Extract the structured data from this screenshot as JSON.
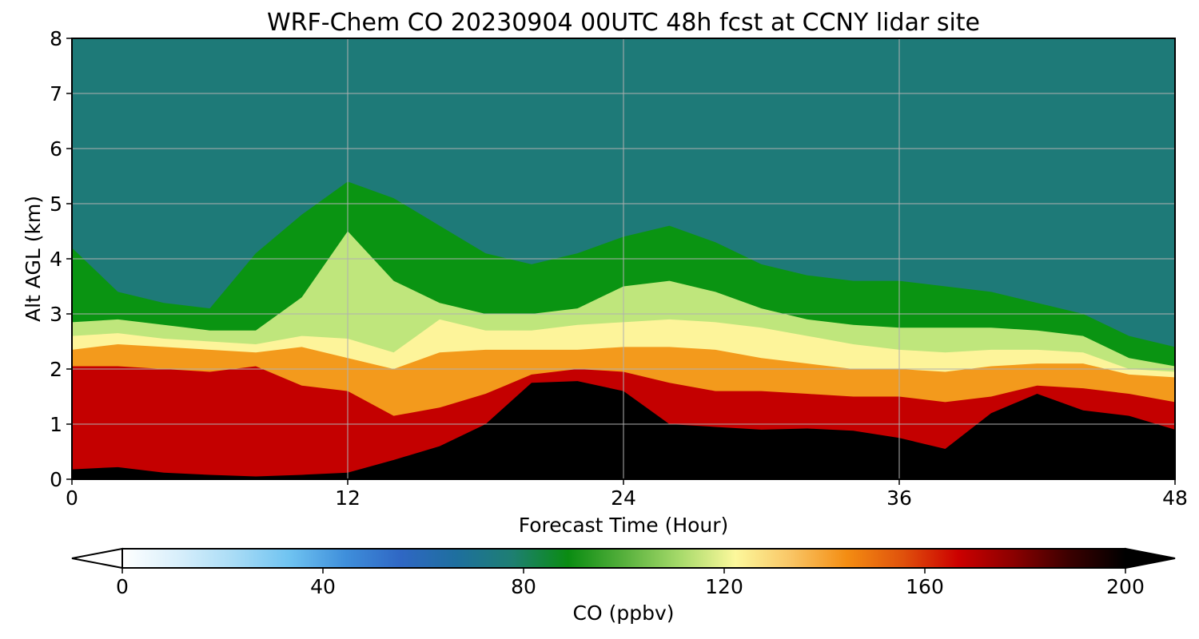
{
  "chart_data": {
    "type": "heatmap",
    "title": "WRF-Chem CO  20230904 00UTC 48h fcst at CCNY lidar site",
    "xlabel": "Forecast Time (Hour)",
    "ylabel": "Alt AGL (km)",
    "xlim": [
      0,
      48
    ],
    "ylim": [
      0,
      8
    ],
    "xticks": [
      0,
      12,
      24,
      36,
      48
    ],
    "xtick_labels": [
      "0",
      "12",
      "24",
      "36",
      "48"
    ],
    "yticks": [
      0,
      1,
      2,
      3,
      4,
      5,
      6,
      7,
      8
    ],
    "ytick_labels": [
      "0",
      "1",
      "2",
      "3",
      "4",
      "5",
      "6",
      "7",
      "8"
    ],
    "grid": true,
    "colorbar": {
      "label": "CO  (ppbv)",
      "range": [
        0,
        200
      ],
      "ticks": [
        0,
        40,
        80,
        120,
        160,
        200
      ],
      "tick_labels": [
        "0",
        "40",
        "80",
        "120",
        "160",
        "200"
      ],
      "extend": "both",
      "colors": [
        "#ffffff",
        "#d8effb",
        "#a9dcf6",
        "#6fc3f1",
        "#3f8fdb",
        "#2f67c4",
        "#1e6f9e",
        "#1e7f72",
        "#0a8c12",
        "#56b03c",
        "#a6da6a",
        "#fcf89c",
        "#f9c565",
        "#f48d12",
        "#e0520c",
        "#cc0000",
        "#8a0000",
        "#3a0000",
        "#000000"
      ]
    },
    "x_hours": [
      0,
      2,
      4,
      6,
      8,
      10,
      12,
      14,
      16,
      18,
      20,
      22,
      24,
      26,
      28,
      30,
      32,
      34,
      36,
      38,
      40,
      42,
      44,
      46,
      48
    ],
    "boundaries_km": {
      "black_top": [
        0.18,
        0.22,
        0.12,
        0.08,
        0.05,
        0.08,
        0.12,
        0.35,
        0.6,
        1.0,
        1.75,
        1.78,
        1.6,
        1.0,
        0.95,
        0.9,
        0.92,
        0.88,
        0.75,
        0.55,
        1.2,
        1.55,
        1.25,
        1.15,
        0.9
      ],
      "red_top": [
        2.05,
        2.05,
        2.0,
        1.95,
        2.05,
        1.7,
        1.6,
        1.15,
        1.3,
        1.55,
        1.9,
        2.0,
        1.95,
        1.75,
        1.6,
        1.6,
        1.55,
        1.5,
        1.5,
        1.4,
        1.5,
        1.7,
        1.65,
        1.55,
        1.4
      ],
      "orange_top": [
        2.35,
        2.45,
        2.4,
        2.35,
        2.3,
        2.4,
        2.2,
        2.0,
        2.3,
        2.35,
        2.35,
        2.35,
        2.4,
        2.4,
        2.35,
        2.2,
        2.1,
        2.0,
        2.0,
        1.95,
        2.05,
        2.1,
        2.1,
        1.9,
        1.85
      ],
      "yellow_top": [
        2.6,
        2.65,
        2.55,
        2.5,
        2.45,
        2.6,
        2.55,
        2.3,
        2.9,
        2.7,
        2.7,
        2.8,
        2.85,
        2.9,
        2.85,
        2.75,
        2.6,
        2.45,
        2.35,
        2.3,
        2.35,
        2.35,
        2.3,
        2.0,
        1.95
      ],
      "lightgreen_top": [
        2.85,
        2.9,
        2.8,
        2.7,
        2.7,
        3.3,
        4.5,
        3.6,
        3.2,
        3.0,
        3.0,
        3.1,
        3.5,
        3.6,
        3.4,
        3.1,
        2.9,
        2.8,
        2.75,
        2.75,
        2.75,
        2.7,
        2.6,
        2.2,
        2.05
      ],
      "green_top": [
        4.2,
        3.4,
        3.2,
        3.1,
        4.1,
        4.8,
        5.4,
        5.1,
        4.6,
        4.1,
        3.9,
        4.1,
        4.4,
        4.6,
        4.3,
        3.9,
        3.7,
        3.6,
        3.6,
        3.5,
        3.4,
        3.2,
        3.0,
        2.6,
        2.4
      ]
    }
  }
}
